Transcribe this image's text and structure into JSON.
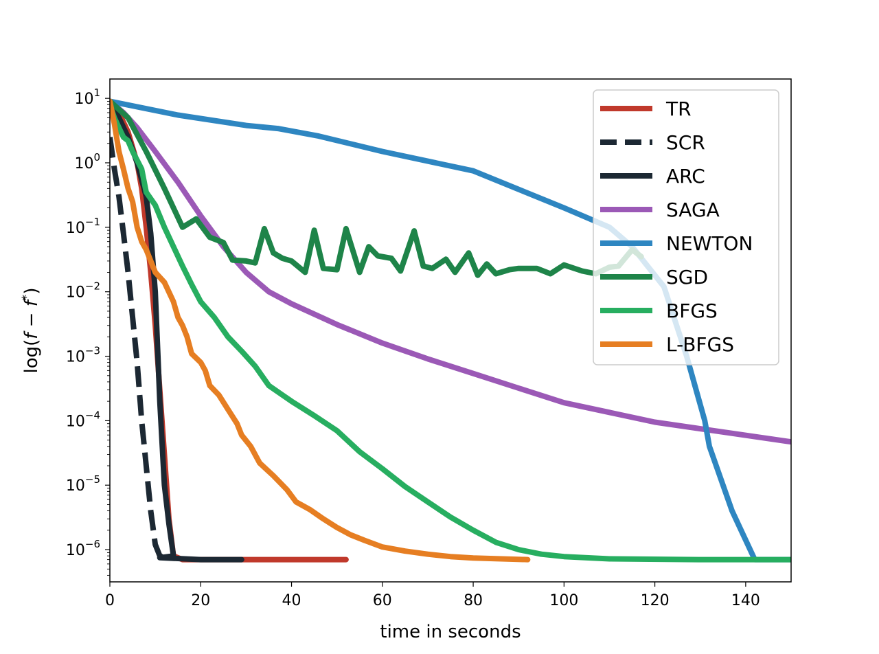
{
  "chart_data": {
    "type": "line",
    "title": "",
    "xlabel": "time in seconds",
    "ylabel_parts": {
      "prefix": "log(",
      "f": "f",
      "minus": " − ",
      "fstar": "f",
      "star": "*",
      "suffix": ")"
    },
    "xlim": [
      0,
      150
    ],
    "ylim_log10": [
      -6.5,
      1.3
    ],
    "y_scale": "log",
    "grid": false,
    "legend_position": "top-right",
    "x_ticks": [
      0,
      20,
      40,
      60,
      80,
      100,
      120,
      140
    ],
    "x_tick_labels": [
      "0",
      "20",
      "40",
      "60",
      "80",
      "100",
      "120",
      "140"
    ],
    "y_ticks": [
      {
        "exp": 1,
        "base": "10",
        "power": "1"
      },
      {
        "exp": 0,
        "base": "10",
        "power": "0"
      },
      {
        "exp": -1,
        "base": "10",
        "power": "−1"
      },
      {
        "exp": -2,
        "base": "10",
        "power": "−2"
      },
      {
        "exp": -3,
        "base": "10",
        "power": "−3"
      },
      {
        "exp": -4,
        "base": "10",
        "power": "−4"
      },
      {
        "exp": -5,
        "base": "10",
        "power": "−5"
      },
      {
        "exp": -6,
        "base": "10",
        "power": "−6"
      }
    ],
    "series": [
      {
        "name": "TR",
        "color": "#c0392b",
        "style": "solid",
        "points": [
          [
            0,
            8
          ],
          [
            2,
            6
          ],
          [
            4,
            3
          ],
          [
            6,
            1
          ],
          [
            7,
            0.4
          ],
          [
            8,
            0.1
          ],
          [
            9,
            0.02
          ],
          [
            10,
            0.003
          ],
          [
            11,
            0.0003
          ],
          [
            12,
            3e-05
          ],
          [
            13,
            3e-06
          ],
          [
            14,
            8e-07
          ],
          [
            16,
            7e-07
          ],
          [
            30,
            7e-07
          ],
          [
            52,
            7e-07
          ]
        ]
      },
      {
        "name": "SCR",
        "color": "#1c2833",
        "style": "dashed",
        "points": [
          [
            0,
            2.5
          ],
          [
            1,
            0.8
          ],
          [
            2,
            0.3
          ],
          [
            3,
            0.08
          ],
          [
            4,
            0.02
          ],
          [
            5,
            0.004
          ],
          [
            6,
            0.0008
          ],
          [
            7,
            0.0001
          ],
          [
            8,
            2e-05
          ],
          [
            9,
            4e-06
          ],
          [
            10,
            1.2e-06
          ],
          [
            11,
            8e-07
          ],
          [
            13,
            7e-07
          ]
        ]
      },
      {
        "name": "ARC",
        "color": "#1c2833",
        "style": "solid",
        "points": [
          [
            0,
            9
          ],
          [
            2,
            5
          ],
          [
            4,
            2.5
          ],
          [
            6,
            1
          ],
          [
            8,
            0.3
          ],
          [
            9,
            0.08
          ],
          [
            10,
            0.01
          ],
          [
            11,
            0.0002
          ],
          [
            12,
            1e-05
          ],
          [
            13,
            2.5e-06
          ],
          [
            14,
            8e-07
          ],
          [
            11,
            7.5e-07
          ],
          [
            20,
            7e-07
          ],
          [
            29,
            7e-07
          ]
        ]
      },
      {
        "name": "SAGA",
        "color": "#9b59b6",
        "style": "solid",
        "points": [
          [
            0,
            9
          ],
          [
            3,
            6
          ],
          [
            6,
            3.5
          ],
          [
            10,
            1.5
          ],
          [
            15,
            0.5
          ],
          [
            20,
            0.15
          ],
          [
            25,
            0.05
          ],
          [
            30,
            0.02
          ],
          [
            35,
            0.01
          ],
          [
            40,
            0.0065
          ],
          [
            50,
            0.0031
          ],
          [
            60,
            0.0016
          ],
          [
            70,
            0.00091
          ],
          [
            80,
            0.00054
          ],
          [
            90,
            0.00032
          ],
          [
            100,
            0.00019
          ],
          [
            120,
            9.5e-05
          ],
          [
            150,
            4.7e-05
          ]
        ]
      },
      {
        "name": "NEWTON",
        "color": "#2e86c1",
        "style": "solid",
        "points": [
          [
            0,
            9
          ],
          [
            15,
            5.5
          ],
          [
            30,
            3.8
          ],
          [
            37,
            3.4
          ],
          [
            46,
            2.6
          ],
          [
            60,
            1.5
          ],
          [
            80,
            0.75
          ],
          [
            100,
            0.2
          ],
          [
            110,
            0.1
          ],
          [
            115,
            0.05
          ],
          [
            122,
            0.012
          ],
          [
            127,
            0.001
          ],
          [
            131,
            0.0001
          ],
          [
            132,
            4e-05
          ],
          [
            137,
            4e-06
          ],
          [
            142,
            7e-07
          ],
          [
            150,
            7e-07
          ]
        ]
      },
      {
        "name": "SGD",
        "color": "#1e8449",
        "style": "solid",
        "points": [
          [
            0,
            9
          ],
          [
            4,
            5
          ],
          [
            8,
            1.5
          ],
          [
            12,
            0.4
          ],
          [
            16,
            0.1
          ],
          [
            19,
            0.135
          ],
          [
            22,
            0.07
          ],
          [
            25,
            0.058
          ],
          [
            27,
            0.031
          ],
          [
            30,
            0.03
          ],
          [
            32,
            0.028
          ],
          [
            34,
            0.095
          ],
          [
            36,
            0.04
          ],
          [
            38,
            0.033
          ],
          [
            40,
            0.03
          ],
          [
            43,
            0.02
          ],
          [
            45,
            0.09
          ],
          [
            47,
            0.023
          ],
          [
            50,
            0.022
          ],
          [
            52,
            0.095
          ],
          [
            55,
            0.02
          ],
          [
            57,
            0.05
          ],
          [
            59,
            0.036
          ],
          [
            62,
            0.033
          ],
          [
            64,
            0.021
          ],
          [
            67,
            0.088
          ],
          [
            69,
            0.025
          ],
          [
            71,
            0.023
          ],
          [
            74,
            0.032
          ],
          [
            76,
            0.02
          ],
          [
            79,
            0.04
          ],
          [
            81,
            0.018
          ],
          [
            83,
            0.027
          ],
          [
            85,
            0.019
          ],
          [
            88,
            0.022
          ],
          [
            90,
            0.023
          ],
          [
            94,
            0.023
          ],
          [
            97,
            0.019
          ],
          [
            100,
            0.026
          ],
          [
            104,
            0.021
          ],
          [
            107,
            0.019
          ],
          [
            110,
            0.024
          ],
          [
            112,
            0.025
          ],
          [
            115,
            0.045
          ],
          [
            117,
            0.035
          ]
        ]
      },
      {
        "name": "BFGS",
        "color": "#27ae60",
        "style": "solid",
        "points": [
          [
            0,
            8
          ],
          [
            1,
            5
          ],
          [
            2,
            3.5
          ],
          [
            3,
            2.5
          ],
          [
            4,
            2.2
          ],
          [
            5,
            1.5
          ],
          [
            7,
            0.8
          ],
          [
            8,
            0.35
          ],
          [
            10,
            0.22
          ],
          [
            12,
            0.1
          ],
          [
            14,
            0.05
          ],
          [
            16,
            0.025
          ],
          [
            18,
            0.013
          ],
          [
            20,
            0.007
          ],
          [
            23,
            0.004
          ],
          [
            26,
            0.002
          ],
          [
            29,
            0.0012
          ],
          [
            32,
            0.0007
          ],
          [
            35,
            0.00035
          ],
          [
            38,
            0.00025
          ],
          [
            40,
            0.0002
          ],
          [
            45,
            0.00012
          ],
          [
            50,
            7e-05
          ],
          [
            55,
            3.3e-05
          ],
          [
            60,
            1.8e-05
          ],
          [
            65,
            9.5e-06
          ],
          [
            70,
            5.5e-06
          ],
          [
            75,
            3.2e-06
          ],
          [
            80,
            2e-06
          ],
          [
            85,
            1.3e-06
          ],
          [
            90,
            1e-06
          ],
          [
            95,
            8.5e-07
          ],
          [
            100,
            7.8e-07
          ],
          [
            110,
            7.2e-07
          ],
          [
            130,
            7e-07
          ],
          [
            150,
            7e-07
          ]
        ]
      },
      {
        "name": "L-BFGS",
        "color": "#e67e22",
        "style": "solid",
        "points": [
          [
            0,
            9
          ],
          [
            1,
            4
          ],
          [
            2,
            1.5
          ],
          [
            3,
            0.8
          ],
          [
            4,
            0.4
          ],
          [
            5,
            0.25
          ],
          [
            6,
            0.1
          ],
          [
            7,
            0.06
          ],
          [
            8,
            0.045
          ],
          [
            9,
            0.03
          ],
          [
            10,
            0.02
          ],
          [
            12,
            0.014
          ],
          [
            14,
            0.007
          ],
          [
            15,
            0.004
          ],
          [
            16,
            0.003
          ],
          [
            17,
            0.002
          ],
          [
            18,
            0.0011
          ],
          [
            20,
            0.0008
          ],
          [
            21,
            0.0006
          ],
          [
            22,
            0.00035
          ],
          [
            24,
            0.00025
          ],
          [
            26,
            0.00015
          ],
          [
            28,
            9e-05
          ],
          [
            29,
            6e-05
          ],
          [
            31,
            4e-05
          ],
          [
            33,
            2.2e-05
          ],
          [
            36,
            1.4e-05
          ],
          [
            39,
            8.5e-06
          ],
          [
            41,
            5.5e-06
          ],
          [
            44,
            4.2e-06
          ],
          [
            47,
            3e-06
          ],
          [
            50,
            2.2e-06
          ],
          [
            53,
            1.7e-06
          ],
          [
            56,
            1.4e-06
          ],
          [
            60,
            1.1e-06
          ],
          [
            65,
            9.5e-07
          ],
          [
            70,
            8.5e-07
          ],
          [
            75,
            7.8e-07
          ],
          [
            80,
            7.4e-07
          ],
          [
            92,
            7e-07
          ]
        ]
      }
    ]
  }
}
